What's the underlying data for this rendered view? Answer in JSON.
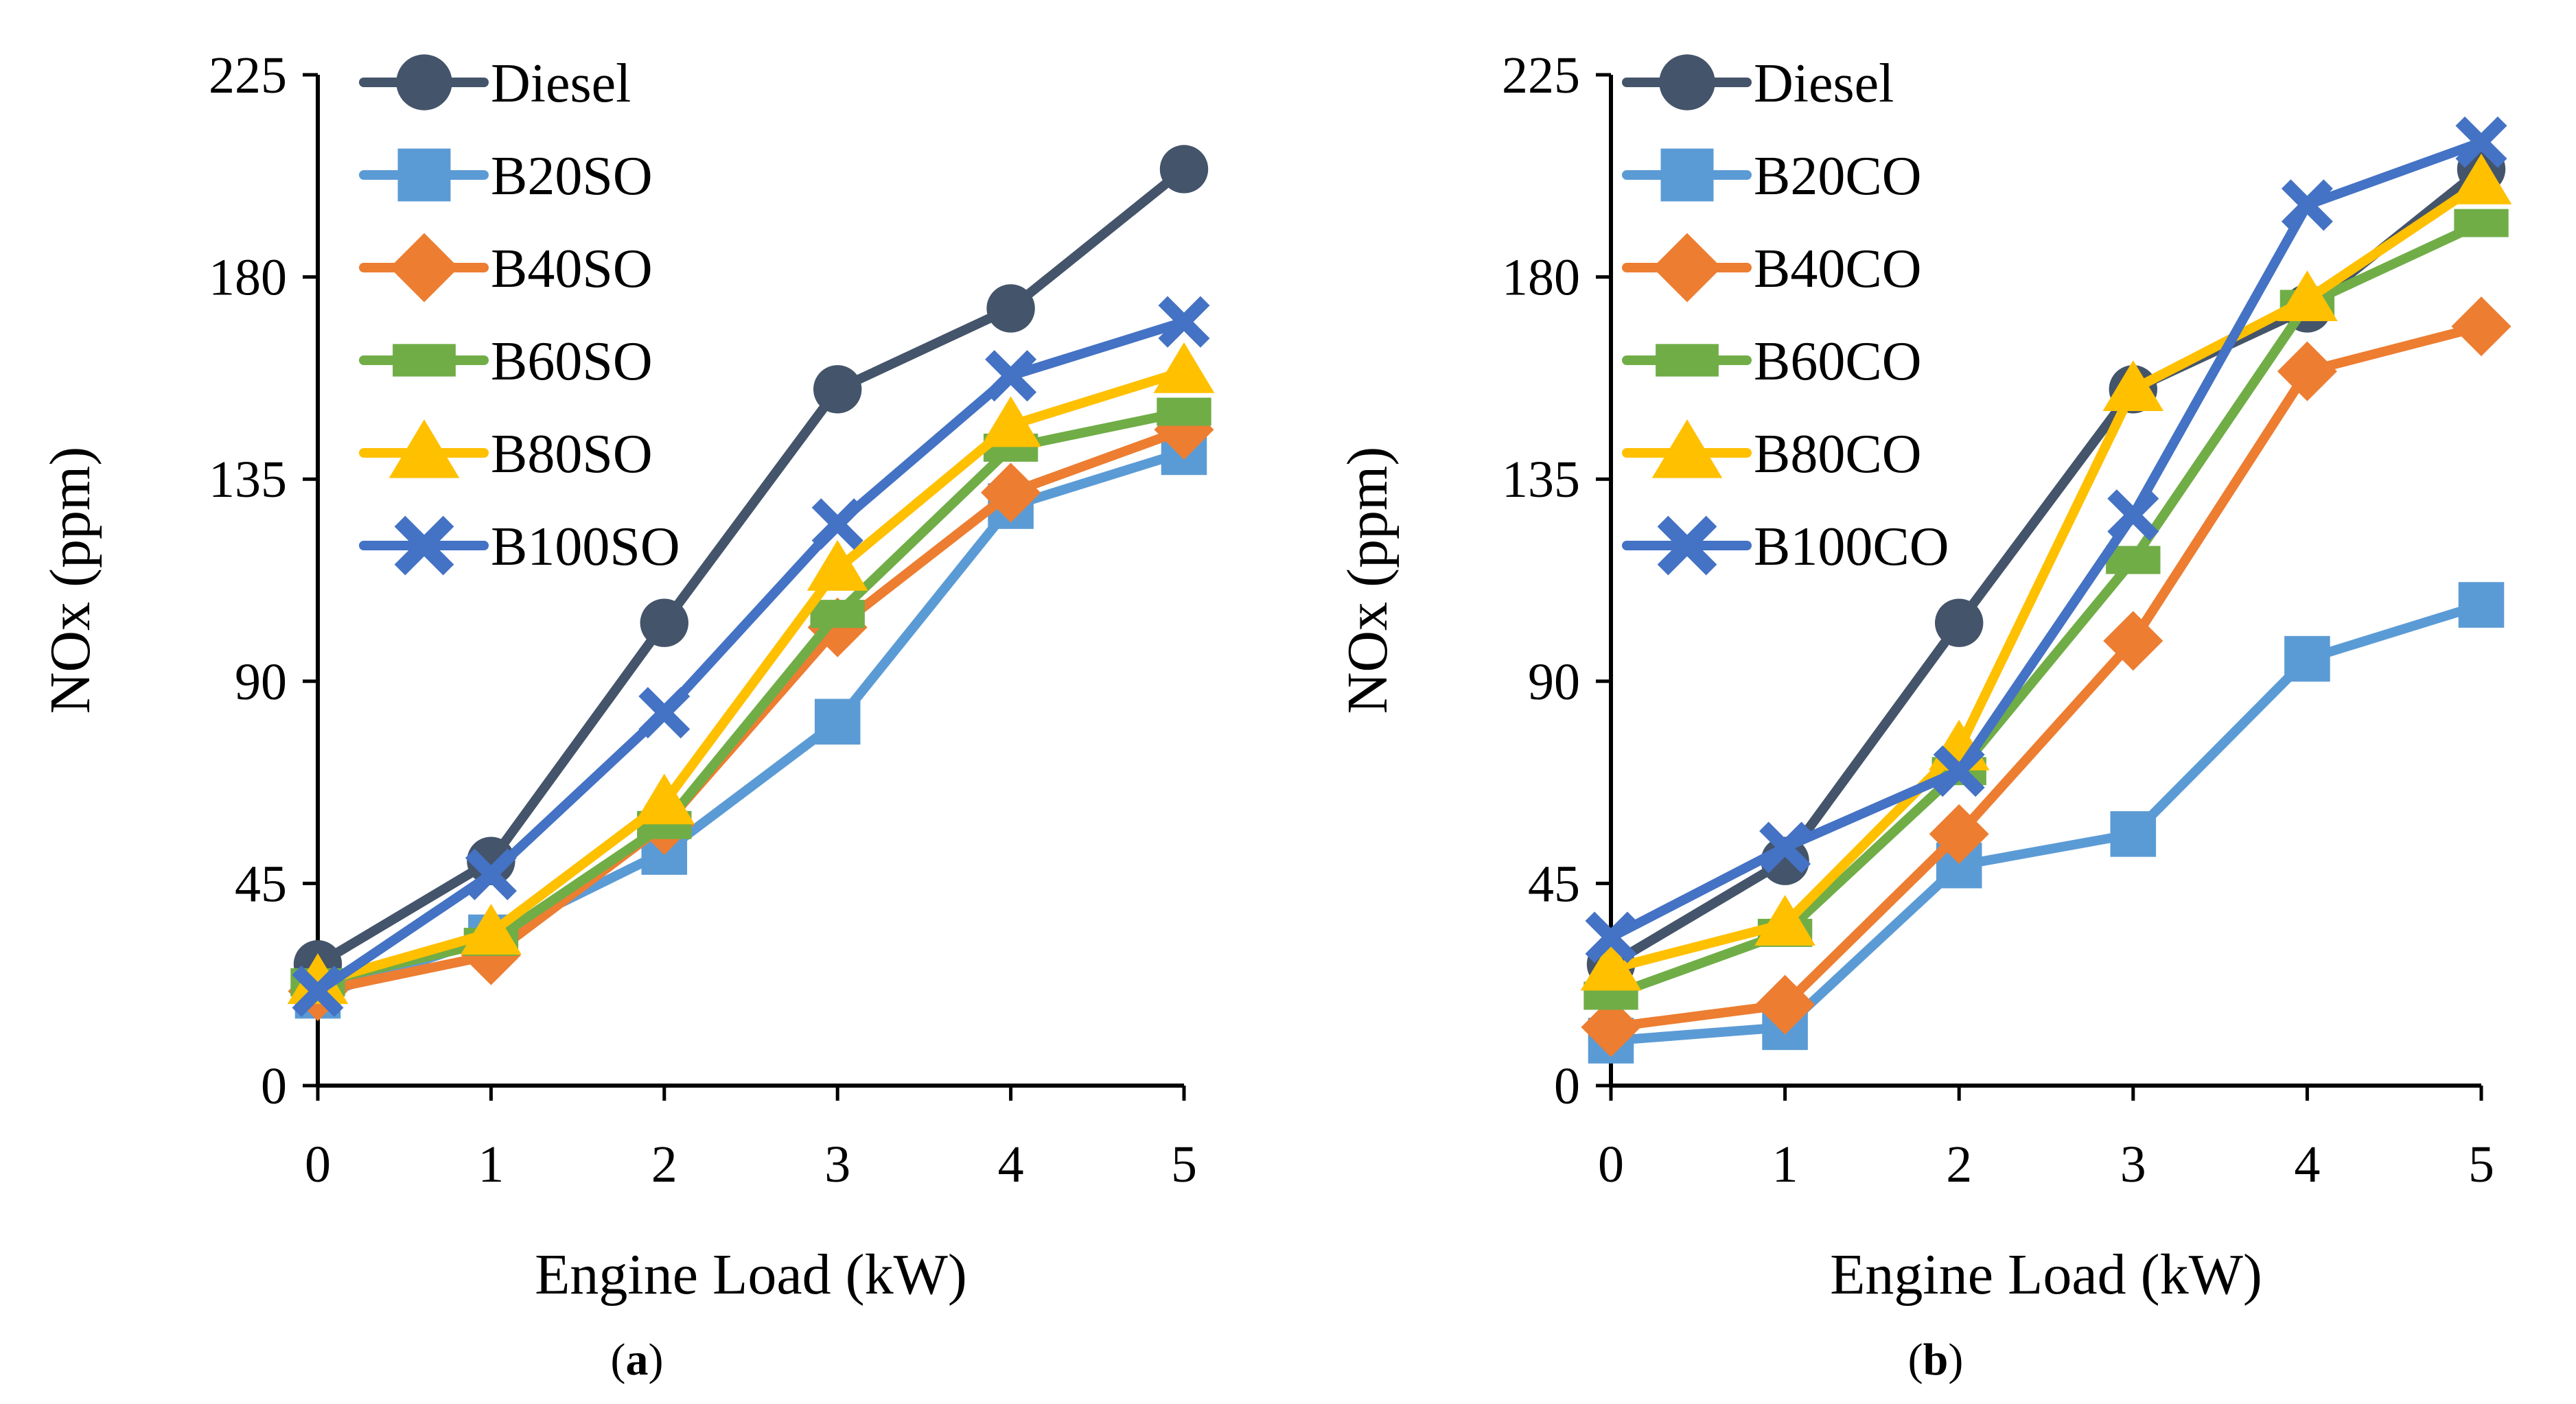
{
  "figure": {
    "caption_a": "(a)",
    "caption_b": "(b)",
    "panel_a_label": "a",
    "panel_b_label": "b"
  },
  "chart_data": [
    {
      "type": "line",
      "panel": "a",
      "xlabel": "Engine Load (kW)",
      "ylabel": "NOx (ppm)",
      "x": [
        0,
        1,
        2,
        3,
        4,
        5
      ],
      "ylim": [
        0,
        225
      ],
      "yticks": [
        0,
        45,
        90,
        135,
        180,
        225
      ],
      "xticks": [
        0,
        1,
        2,
        3,
        4,
        5
      ],
      "legend_position": "top-left",
      "series": [
        {
          "name": "Diesel",
          "marker": "circle",
          "color": "#44546a",
          "values": [
            27,
            50,
            103,
            155,
            173,
            204
          ]
        },
        {
          "name": "B20SO",
          "marker": "square",
          "color": "#5b9bd5",
          "values": [
            20,
            33,
            52,
            81,
            129,
            141
          ]
        },
        {
          "name": "B40SO",
          "marker": "diamond",
          "color": "#ed7d31",
          "values": [
            21,
            29,
            58,
            102,
            132,
            146
          ]
        },
        {
          "name": "B60SO",
          "marker": "bar",
          "color": "#70ad47",
          "values": [
            23,
            32,
            58,
            105,
            142,
            150
          ]
        },
        {
          "name": "B80SO",
          "marker": "triangle",
          "color": "#ffc000",
          "values": [
            23,
            34,
            63,
            115,
            147,
            159
          ]
        },
        {
          "name": "B100SO",
          "marker": "x",
          "color": "#4472c4",
          "values": [
            21,
            47,
            83,
            125,
            158,
            170
          ]
        }
      ]
    },
    {
      "type": "line",
      "panel": "b",
      "xlabel": "Engine Load (kW)",
      "ylabel": "NOx (ppm)",
      "x": [
        0,
        1,
        2,
        3,
        4,
        5
      ],
      "ylim": [
        0,
        225
      ],
      "yticks": [
        0,
        45,
        90,
        135,
        180,
        225
      ],
      "xticks": [
        0,
        1,
        2,
        3,
        4,
        5
      ],
      "legend_position": "top-left",
      "series": [
        {
          "name": "Diesel",
          "marker": "circle",
          "color": "#44546a",
          "values": [
            27,
            50,
            103,
            155,
            173,
            204
          ]
        },
        {
          "name": "B20CO",
          "marker": "square",
          "color": "#5b9bd5",
          "values": [
            10,
            13,
            49,
            56,
            95,
            107
          ]
        },
        {
          "name": "B40CO",
          "marker": "diamond",
          "color": "#ed7d31",
          "values": [
            13,
            18,
            56,
            99,
            159,
            169
          ]
        },
        {
          "name": "B60CO",
          "marker": "bar",
          "color": "#70ad47",
          "values": [
            20,
            34,
            70,
            117,
            174,
            192
          ]
        },
        {
          "name": "B80CO",
          "marker": "triangle",
          "color": "#ffc000",
          "values": [
            26,
            36,
            75,
            155,
            175,
            201
          ]
        },
        {
          "name": "B100CO",
          "marker": "x",
          "color": "#4472c4",
          "values": [
            33,
            53,
            70,
            127,
            196,
            210
          ]
        }
      ]
    }
  ]
}
